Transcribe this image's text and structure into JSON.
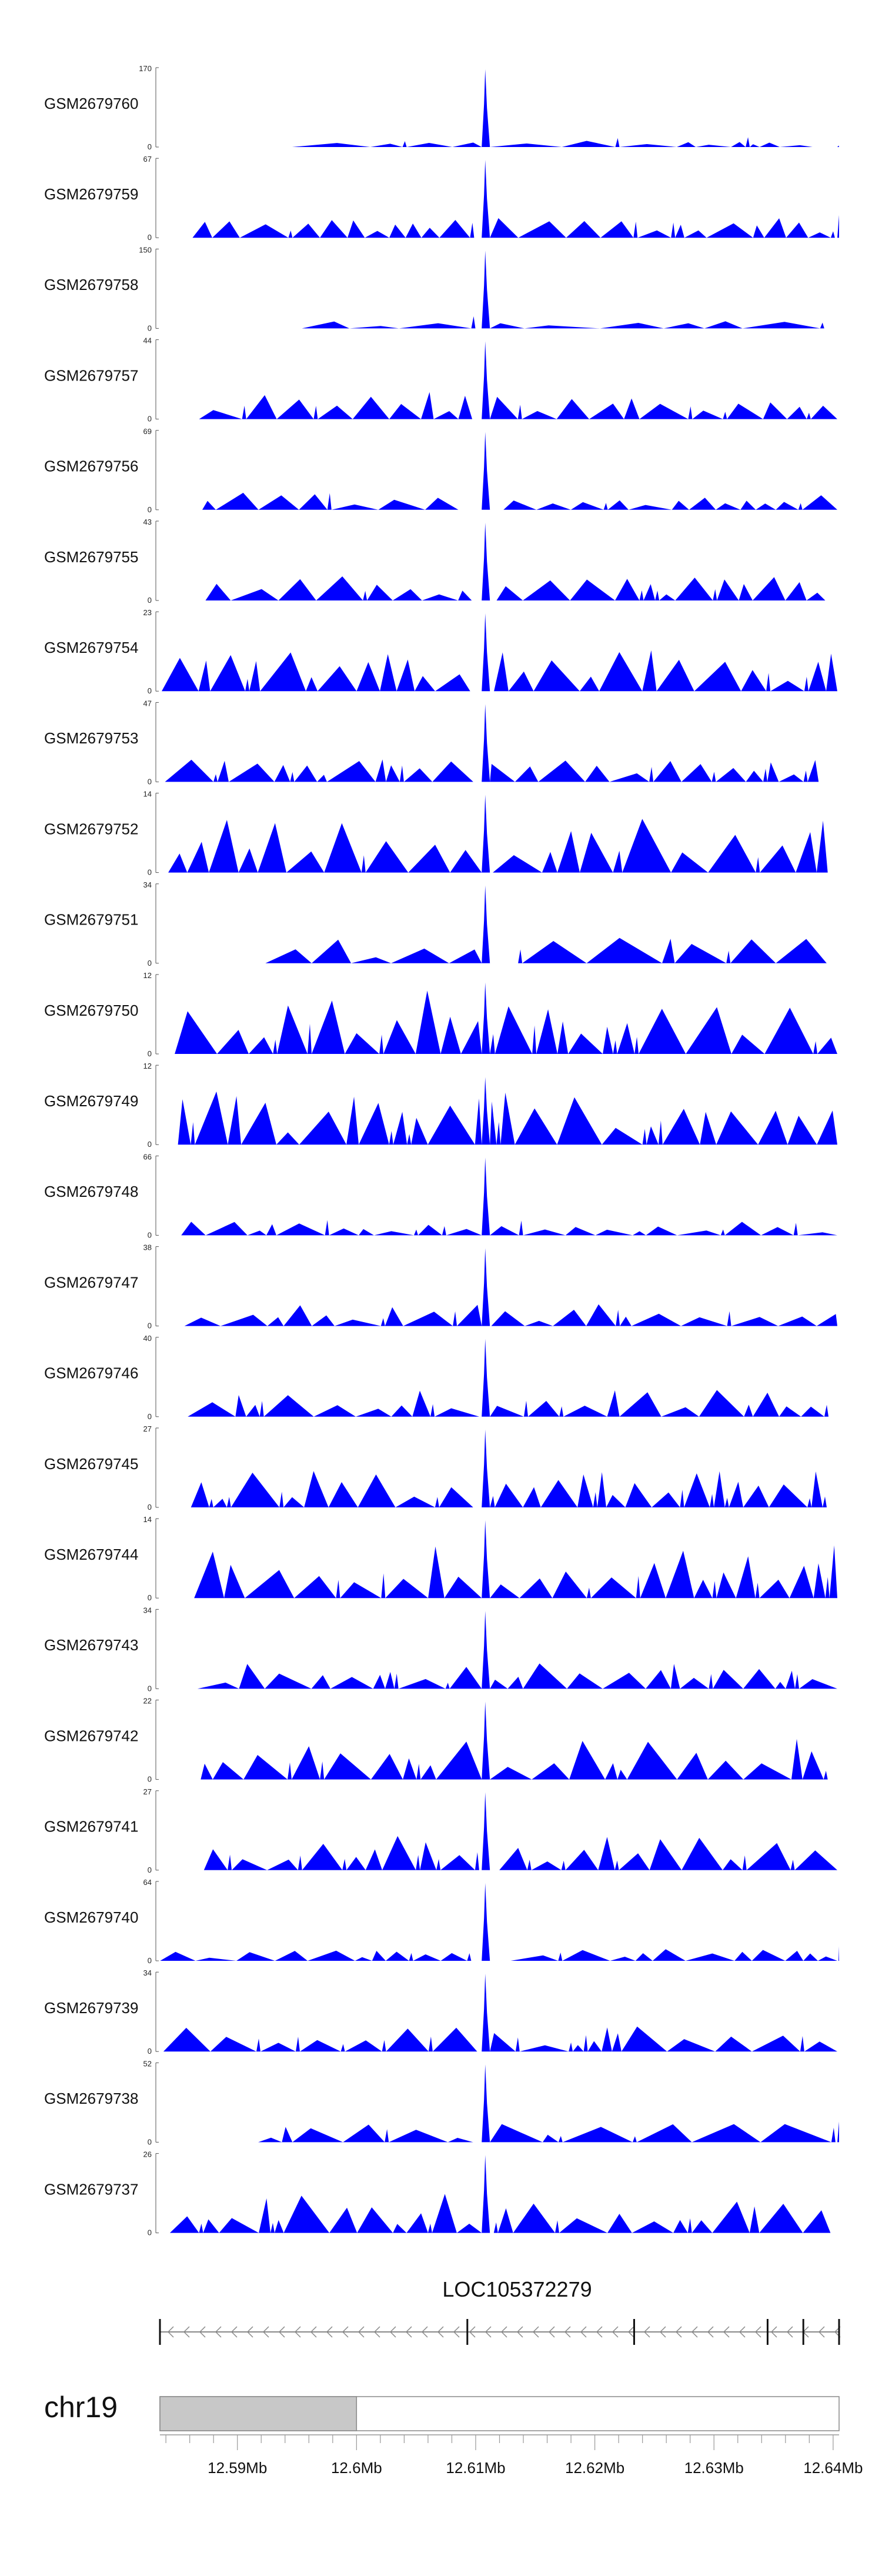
{
  "chart_data": {
    "type": "area",
    "x_unit": "Mb",
    "xlim": [
      12.5835,
      12.6405
    ],
    "series_color": "#0000ff",
    "tracks": [
      {
        "name": "GSM2679760",
        "ymax": "170",
        "ymin": "0",
        "peak": 170,
        "base": 0.07,
        "sparse": true,
        "main_peak": 0.98
      },
      {
        "name": "GSM2679759",
        "ymax": "67",
        "ymin": "0",
        "peak": 67,
        "base": 0.22,
        "sparse": false,
        "main_peak": 0.98
      },
      {
        "name": "GSM2679758",
        "ymax": "150",
        "ymin": "0",
        "peak": 150,
        "base": 0.08,
        "sparse": true,
        "main_peak": 0.98
      },
      {
        "name": "GSM2679757",
        "ymax": "44",
        "ymin": "0",
        "peak": 44,
        "base": 0.3,
        "sparse": false,
        "main_peak": 0.98
      },
      {
        "name": "GSM2679756",
        "ymax": "69",
        "ymin": "0",
        "peak": 69,
        "base": 0.2,
        "sparse": false,
        "main_peak": 0.98
      },
      {
        "name": "GSM2679755",
        "ymax": "43",
        "ymin": "0",
        "peak": 43,
        "base": 0.28,
        "sparse": false,
        "main_peak": 0.98
      },
      {
        "name": "GSM2679754",
        "ymax": "23",
        "ymin": "0",
        "peak": 23,
        "base": 0.45,
        "sparse": false,
        "main_peak": 0.98
      },
      {
        "name": "GSM2679753",
        "ymax": "47",
        "ymin": "0",
        "peak": 47,
        "base": 0.25,
        "sparse": false,
        "main_peak": 0.98
      },
      {
        "name": "GSM2679752",
        "ymax": "14",
        "ymin": "0",
        "peak": 14,
        "base": 0.6,
        "sparse": false,
        "main_peak": 0.98
      },
      {
        "name": "GSM2679751",
        "ymax": "34",
        "ymin": "0",
        "peak": 34,
        "base": 0.3,
        "sparse": true,
        "main_peak": 0.98
      },
      {
        "name": "GSM2679750",
        "ymax": "12",
        "ymin": "0",
        "peak": 12,
        "base": 0.7,
        "sparse": false,
        "main_peak": 0.9
      },
      {
        "name": "GSM2679749",
        "ymax": "12",
        "ymin": "0",
        "peak": 12,
        "base": 0.6,
        "sparse": false,
        "main_peak": 0.85
      },
      {
        "name": "GSM2679748",
        "ymax": "66",
        "ymin": "0",
        "peak": 66,
        "base": 0.15,
        "sparse": false,
        "main_peak": 0.98
      },
      {
        "name": "GSM2679747",
        "ymax": "38",
        "ymin": "0",
        "peak": 38,
        "base": 0.25,
        "sparse": false,
        "main_peak": 0.98
      },
      {
        "name": "GSM2679746",
        "ymax": "40",
        "ymin": "0",
        "peak": 40,
        "base": 0.3,
        "sparse": false,
        "main_peak": 0.98
      },
      {
        "name": "GSM2679745",
        "ymax": "27",
        "ymin": "0",
        "peak": 27,
        "base": 0.4,
        "sparse": false,
        "main_peak": 0.98
      },
      {
        "name": "GSM2679744",
        "ymax": "14",
        "ymin": "0",
        "peak": 14,
        "base": 0.6,
        "sparse": false,
        "main_peak": 0.98
      },
      {
        "name": "GSM2679743",
        "ymax": "34",
        "ymin": "0",
        "peak": 34,
        "base": 0.3,
        "sparse": false,
        "main_peak": 0.98
      },
      {
        "name": "GSM2679742",
        "ymax": "22",
        "ymin": "0",
        "peak": 22,
        "base": 0.45,
        "sparse": false,
        "main_peak": 0.98
      },
      {
        "name": "GSM2679741",
        "ymax": "27",
        "ymin": "0",
        "peak": 27,
        "base": 0.42,
        "sparse": false,
        "main_peak": 0.98
      },
      {
        "name": "GSM2679740",
        "ymax": "64",
        "ymin": "0",
        "peak": 64,
        "base": 0.14,
        "sparse": false,
        "main_peak": 0.98
      },
      {
        "name": "GSM2679739",
        "ymax": "34",
        "ymin": "0",
        "peak": 34,
        "base": 0.3,
        "sparse": false,
        "main_peak": 0.98
      },
      {
        "name": "GSM2679738",
        "ymax": "52",
        "ymin": "0",
        "peak": 52,
        "base": 0.2,
        "sparse": true,
        "main_peak": 0.98
      },
      {
        "name": "GSM2679737",
        "ymax": "26",
        "ymin": "0",
        "peak": 26,
        "base": 0.45,
        "sparse": false,
        "main_peak": 0.98
      }
    ],
    "main_peak_position_mb": 12.6108,
    "gene": {
      "name": "LOC105372279",
      "start_mb": 12.5835,
      "end_mb": 12.6405,
      "strand": "-",
      "exon_marks_mb": [
        12.5835,
        12.6093,
        12.6233,
        12.6345,
        12.6375,
        12.6405
      ]
    },
    "ideogram": {
      "chrom": "chr19",
      "band_start_mb": 12.5835,
      "band_end_mb": 12.6,
      "band_color": "#c8c8c8"
    },
    "x_ticks": [
      {
        "value": 12.59,
        "label": "12.59Mb"
      },
      {
        "value": 12.6,
        "label": "12.6Mb"
      },
      {
        "value": 12.61,
        "label": "12.61Mb"
      },
      {
        "value": 12.62,
        "label": "12.62Mb"
      },
      {
        "value": 12.63,
        "label": "12.63Mb"
      },
      {
        "value": 12.64,
        "label": "12.64Mb"
      }
    ]
  }
}
